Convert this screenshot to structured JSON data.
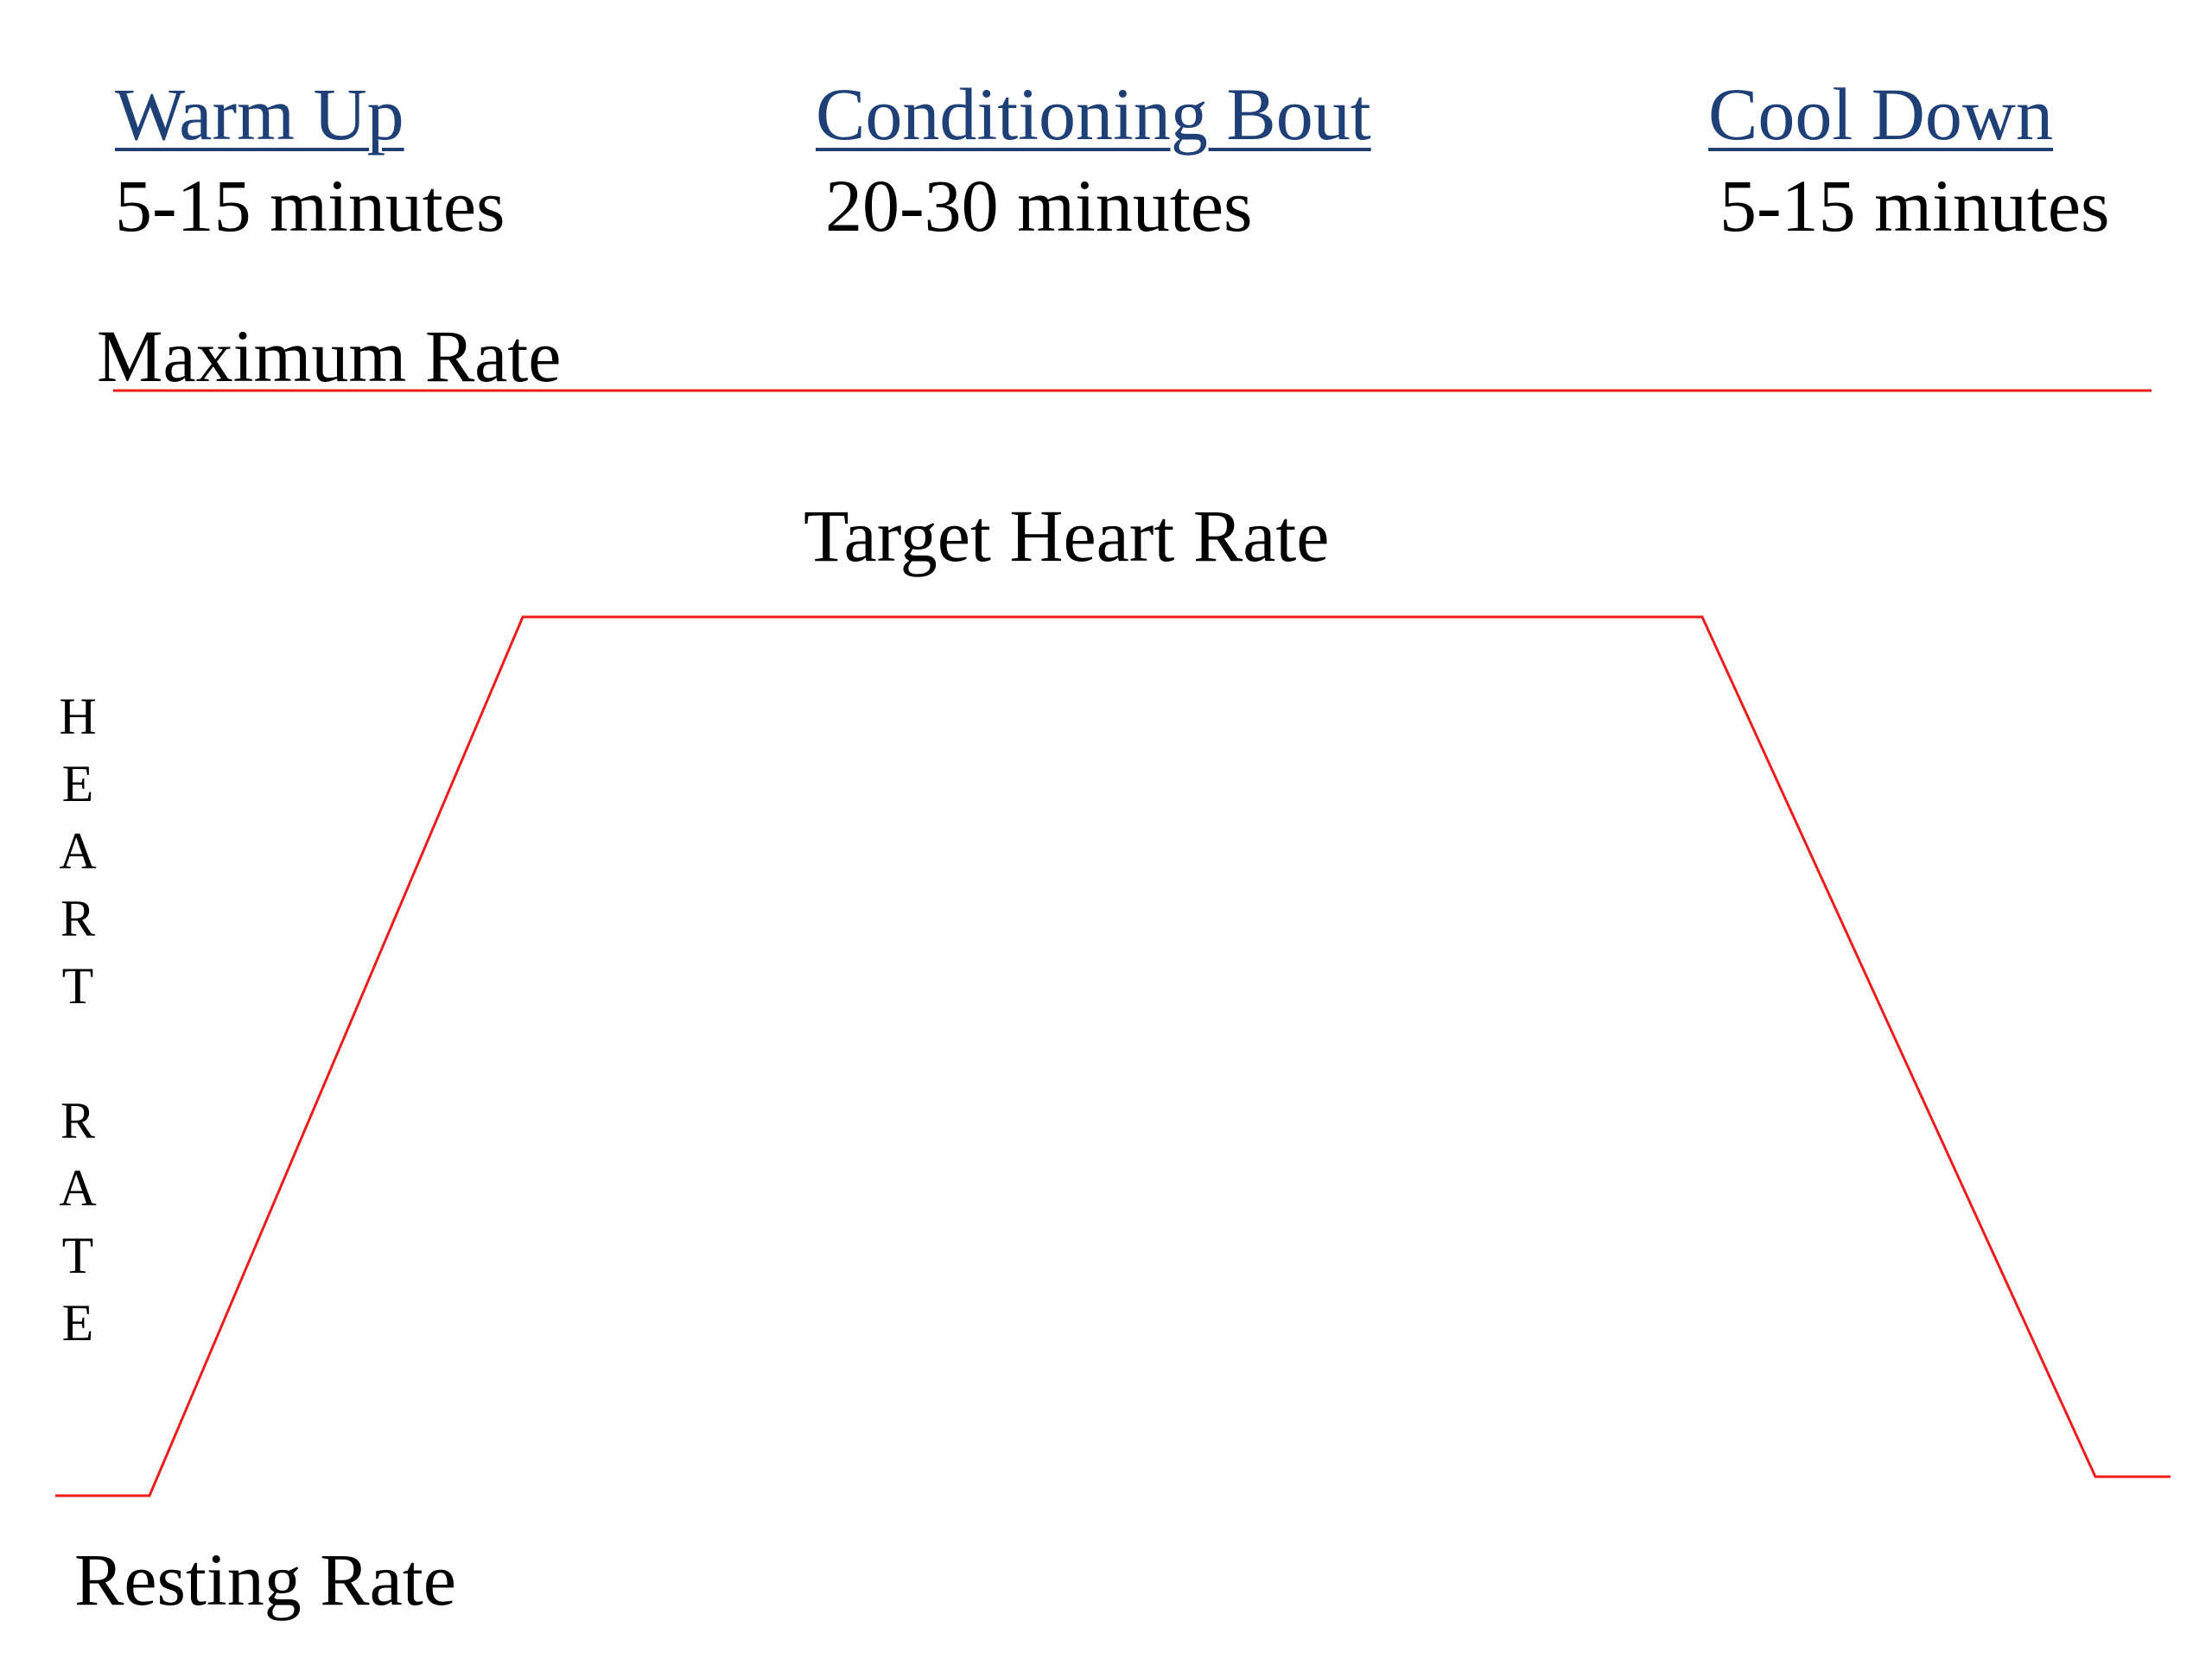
{
  "phases": [
    {
      "heading": "Warm Up",
      "duration": "5-15 minutes"
    },
    {
      "heading": "Conditioning Bout",
      "duration": "20-30 minutes"
    },
    {
      "heading": "Cool Down",
      "duration": "5-15 minutes"
    }
  ],
  "rates": {
    "maximum": "Maximum Rate",
    "target": "Target Heart Rate",
    "resting": "Resting Rate"
  },
  "y_axis_letters": [
    "H",
    "E",
    "A",
    "R",
    "T",
    "",
    "R",
    "A",
    "T",
    "E"
  ],
  "colors": {
    "heading": "#1f3f77",
    "line": "#ee1c1c",
    "text": "#000000"
  }
}
